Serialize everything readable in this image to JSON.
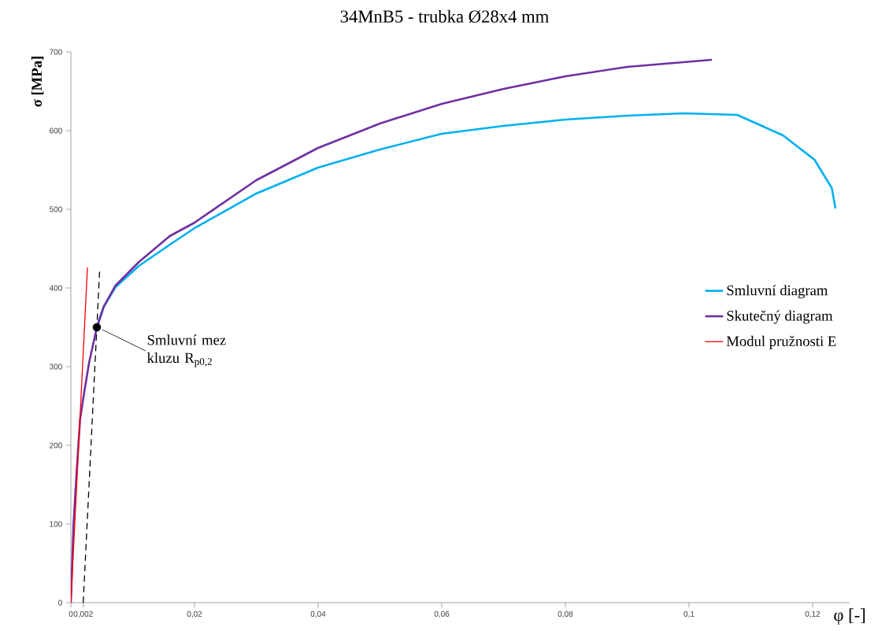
{
  "chart_data": {
    "type": "line",
    "title": "34MnB5 - trubka Ø28x4 mm",
    "xlabel": "φ [-]",
    "ylabel": "σ [MPa]",
    "xlim": [
      0,
      0.126
    ],
    "ylim": [
      0,
      700
    ],
    "xticks": [
      0,
      {
        "value": 0.002,
        "label": "0,002"
      },
      {
        "value": 0.02,
        "label": "0,02"
      },
      {
        "value": 0.04,
        "label": "0,04"
      },
      {
        "value": 0.06,
        "label": "0,06"
      },
      {
        "value": 0.08,
        "label": "0,08"
      },
      {
        "value": 0.1,
        "label": "0,1"
      },
      {
        "value": 0.12,
        "label": "0,12"
      }
    ],
    "yticks": [
      0,
      100,
      200,
      300,
      400,
      500,
      600,
      700
    ],
    "grid": false,
    "legend": "right",
    "series": [
      {
        "name": "Smluvní diagram",
        "color": "#00b0f0",
        "x": [
          0.00424,
          0.00531,
          0.00722,
          0.011,
          0.016,
          0.02,
          0.03,
          0.04,
          0.05,
          0.06,
          0.07,
          0.08,
          0.09,
          0.0992,
          0.1078,
          0.1152,
          0.1203,
          0.1231,
          0.1237
        ],
        "values": [
          351,
          376,
          401,
          428,
          455,
          476,
          520,
          553,
          576,
          596,
          606,
          614,
          619,
          622,
          620,
          594,
          563,
          527,
          501
        ]
      },
      {
        "name": "Skutečný diagram",
        "color": "#7030a0",
        "x": [
          0,
          0.00042,
          0.00093,
          0.00149,
          0.00213,
          0.00297,
          0.00424,
          0.00531,
          0.00722,
          0.011,
          0.016,
          0.02,
          0.03,
          0.04,
          0.05,
          0.06,
          0.07,
          0.08,
          0.09,
          0.1037
        ],
        "values": [
          0,
          99,
          166,
          233,
          266,
          306,
          351,
          376,
          403,
          433,
          466,
          483,
          537,
          578,
          609,
          634,
          653,
          669,
          681,
          690
        ]
      },
      {
        "name": "Modul pružnosti E",
        "color": "#ff0000",
        "x": [
          0,
          0.00268
        ],
        "values": [
          0,
          426
        ]
      },
      {
        "color": "#000000",
        "line_style": "dashed",
        "x": [
          0.002,
          0.00466
        ],
        "values": [
          0,
          423
        ]
      },
      {
        "type": "scatter",
        "marker": "circle",
        "color": "#000000",
        "x": [
          0.0042
        ],
        "values": [
          350
        ]
      }
    ],
    "annotations": [
      {
        "text": "Smluvní mez kluzu R$_{p0,2}$",
        "x": 0.0042,
        "y": 350
      }
    ]
  }
}
